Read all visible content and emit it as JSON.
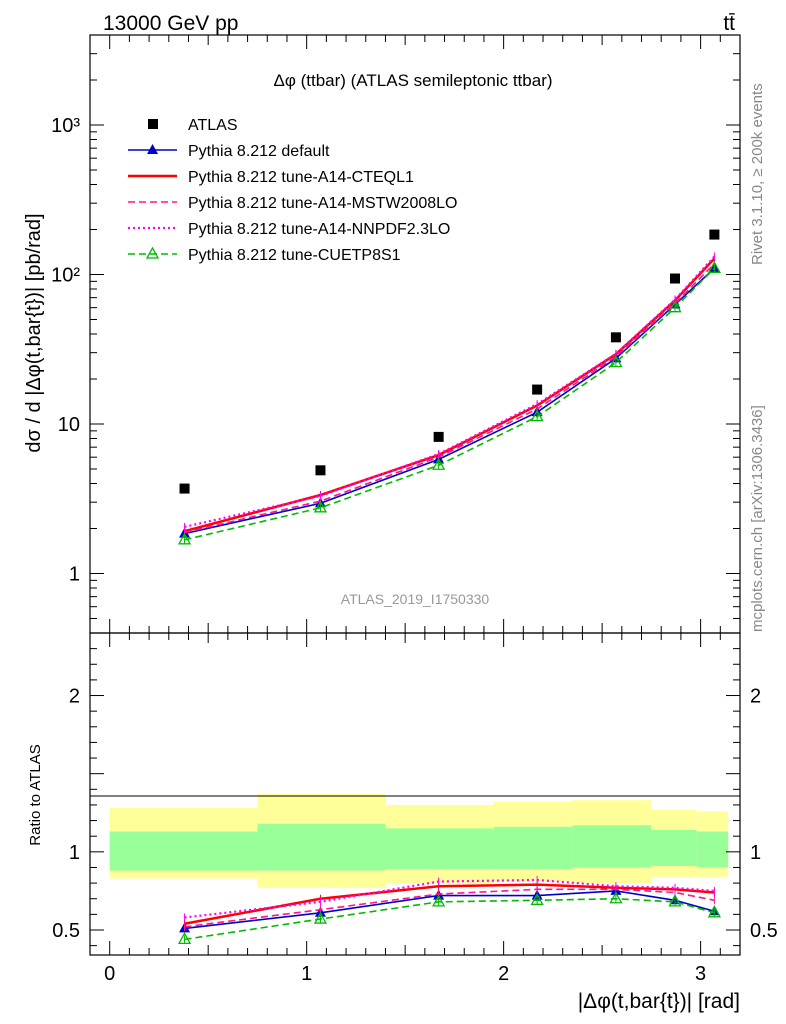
{
  "header": {
    "energy_label": "13000 GeV pp",
    "process_label": "tt̄",
    "rivet_label": "Rivet 3.1.10, ≥ 200k events",
    "mcplots_label": "mcplots.cern.ch [arXiv:1306.3436]"
  },
  "chart_data": {
    "type": "line",
    "title": "Δφ (ttbar) (ATLAS semileptonic ttbar)",
    "analysis_label": "ATLAS_2019_I1750330",
    "xlabel": "|Δφ(t,bar{t})| [rad]",
    "ylabel": "dσ / d |Δφ(t,bar{t})| [pb/rad]",
    "ratio_ylabel": "Ratio to ATLAS",
    "xlim": [
      -0.1,
      3.2
    ],
    "ylim": [
      0.4,
      4000
    ],
    "yscale": "log",
    "ratio_ylim": [
      0.34,
      2.4
    ],
    "x_ticks": [
      "0",
      "1",
      "2",
      "3"
    ],
    "y_ticks": [
      "1",
      "10",
      "10²",
      "10³"
    ],
    "ratio_ticks": [
      "0.5",
      "1",
      "2"
    ],
    "bins": [
      [
        0,
        0.75
      ],
      [
        0.75,
        1.4
      ],
      [
        1.4,
        1.95
      ],
      [
        1.95,
        2.35
      ],
      [
        2.35,
        2.75
      ],
      [
        2.75,
        2.98
      ],
      [
        2.98,
        3.14
      ]
    ],
    "x": [
      0.38,
      1.07,
      1.67,
      2.17,
      2.57,
      2.87,
      3.07
    ],
    "data": {
      "name": "ATLAS",
      "values": [
        3.7,
        4.9,
        8.2,
        17,
        38,
        94,
        185
      ],
      "band_inner": [
        [
          0.88,
          1.13
        ],
        [
          0.88,
          1.18
        ],
        [
          0.89,
          1.15
        ],
        [
          0.89,
          1.16
        ],
        [
          0.9,
          1.17
        ],
        [
          0.91,
          1.14
        ],
        [
          0.9,
          1.13
        ]
      ],
      "band_outer": [
        [
          0.83,
          1.28
        ],
        [
          0.77,
          1.37
        ],
        [
          0.8,
          1.3
        ],
        [
          0.81,
          1.32
        ],
        [
          0.8,
          1.33
        ],
        [
          0.84,
          1.27
        ],
        [
          0.84,
          1.26
        ]
      ]
    },
    "series": [
      {
        "name": "Pythia 8.212 default",
        "color": "#0000cc",
        "dash": "solid",
        "marker": "triangle-filled",
        "values": [
          1.85,
          2.95,
          5.8,
          12.0,
          27.5,
          63,
          110
        ],
        "ratio": [
          0.51,
          0.61,
          0.72,
          0.72,
          0.75,
          0.69,
          0.62
        ]
      },
      {
        "name": "Pythia 8.212 tune-A14-CTEQL1",
        "color": "#ff0000",
        "dash": "solid",
        "marker": "none",
        "values": [
          1.92,
          3.35,
          6.2,
          13.3,
          29.3,
          67,
          128
        ],
        "ratio": [
          0.54,
          0.7,
          0.78,
          0.79,
          0.77,
          0.76,
          0.74
        ]
      },
      {
        "name": "Pythia 8.212 tune-A14-MSTW2008LO",
        "color": "#ff1493",
        "dash": "dashed",
        "marker": "none",
        "values": [
          1.88,
          3.05,
          6.0,
          12.6,
          28.2,
          64,
          118
        ],
        "ratio": [
          0.52,
          0.63,
          0.73,
          0.76,
          0.76,
          0.74,
          0.69
        ]
      },
      {
        "name": "Pythia 8.212 tune-A14-NNPDF2.3LO",
        "color": "#ff00ff",
        "dash": "dotted",
        "marker": "none",
        "values": [
          2.05,
          3.3,
          6.3,
          13.6,
          29.5,
          68,
          132
        ],
        "ratio": [
          0.58,
          0.68,
          0.81,
          0.82,
          0.78,
          0.77,
          0.75
        ]
      },
      {
        "name": "Pythia 8.212 tune-CUETP8S1",
        "color": "#00bb00",
        "dash": "dashed",
        "marker": "triangle-open",
        "values": [
          1.68,
          2.75,
          5.3,
          11.2,
          25.8,
          60,
          110
        ],
        "ratio": [
          0.44,
          0.57,
          0.68,
          0.69,
          0.7,
          0.68,
          0.61
        ]
      }
    ]
  }
}
